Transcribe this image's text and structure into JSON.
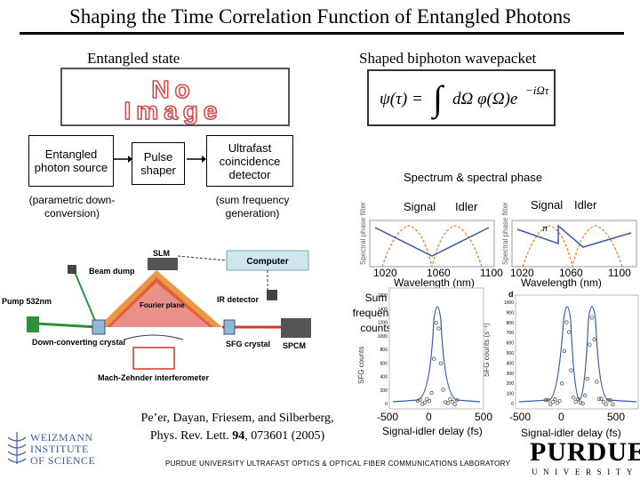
{
  "title": "Shaping the Time Correlation Function of Entangled Photons",
  "left_heading": "Entangled state",
  "right_heading": "Shaped biphoton wavepacket",
  "no_image": {
    "line1": "No",
    "line2": "Image"
  },
  "equation": "ψ(τ) = ∫ dΩ φ(Ω)e^{-iΩτ}",
  "flow": {
    "source": "Entangled photon source",
    "shaper": "Pulse shaper",
    "detector": "Ultrafast coincidence detector",
    "source_note": "(parametric down-conversion)",
    "detector_note": "(sum frequency generation)"
  },
  "setup_labels": {
    "slm": "SLM",
    "computer": "Computer",
    "beam_dump": "Beam dump",
    "pump": "Pump 532nm",
    "fourier": "Fourier plane",
    "ir_detector": "IR detector",
    "sfg": "SFG crystal",
    "spcm": "SPCM",
    "down_converting": "Down-converting crystal",
    "mach_zehnder": "Mach-Zehnder interferometer"
  },
  "spectrum": {
    "heading": "Spectrum & spectral phase",
    "signal_1": "Signal",
    "idler_1": "Idler",
    "signal_2": "Signal",
    "idler_2": "Idler",
    "phase_axis_label": "Spectral phase filter",
    "pi_label": "π",
    "ticks_1": [
      "1020",
      "1060",
      "1100"
    ],
    "ticks_2": [
      "1020",
      "1060",
      "1100"
    ],
    "xlabel_1": "Wavelength (nm)",
    "xlabel_2": "Wavelength (nm)",
    "panel_letter": "d"
  },
  "sfg_label": "Sum frequency counts",
  "sfg_plots": {
    "ylabel": "SFG counts",
    "ylabel_2": "SFG counts (s⁻¹)",
    "yticks_1": [
      "0",
      "200",
      "400",
      "600",
      "800",
      "1000",
      "1200",
      "1400",
      "1600"
    ],
    "yticks_2": [
      "0",
      "100",
      "200",
      "300",
      "400",
      "500",
      "600",
      "700",
      "800",
      "900",
      "1000"
    ],
    "xticks_1": [
      "-500",
      "0",
      "500"
    ],
    "xticks_2": [
      "-500",
      "0",
      "500"
    ],
    "xlabel_1": "Signal-idler delay (fs)",
    "xlabel_2": "Signal-idler delay (fs)"
  },
  "citation": {
    "line1": "Pe’er, Dayan, Friesem, and Silberberg,",
    "line2_pre": "Phys. Rev. Lett. ",
    "volume": "94",
    "line2_post": ", 073601 (2005)"
  },
  "footer": "PURDUE UNIVERSITY ULTRAFAST OPTICS & OPTICAL FIBER COMMUNICATIONS LABORATORY",
  "logos": {
    "weizmann_1": "WEIZMANN",
    "weizmann_2": "INSTITUTE",
    "weizmann_3": "OF SCIENCE",
    "purdue": "PURDUE",
    "purdue_sub": "UNIVERSITY"
  },
  "colors": {
    "orange": "#e8862a",
    "blue": "#3b5ba8",
    "red": "#d9342b",
    "green": "#2f8f3a"
  }
}
